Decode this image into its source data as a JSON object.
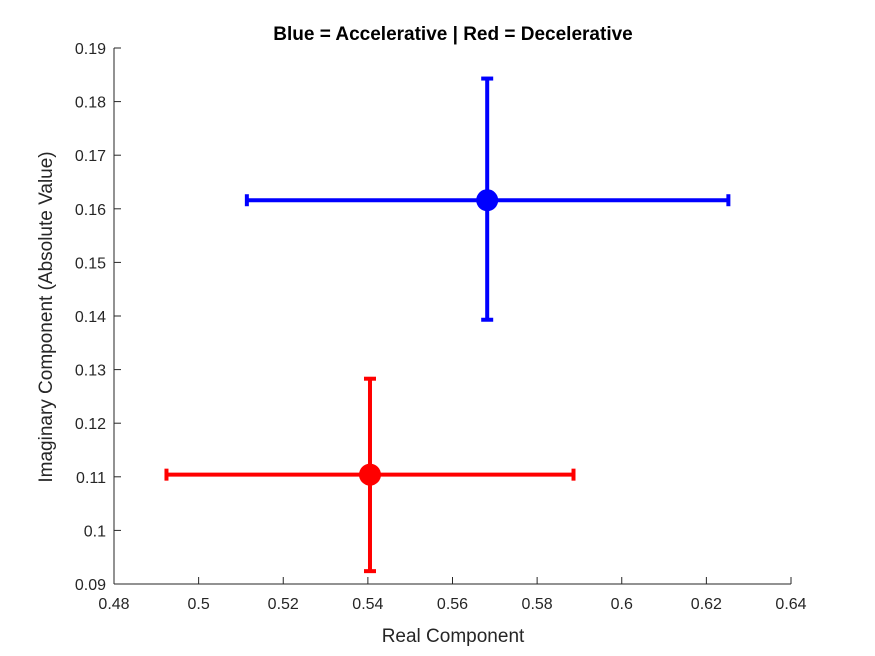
{
  "chart_data": {
    "type": "scatter",
    "title": "Blue = Accelerative | Red = Decelerative",
    "xlabel": "Real Component",
    "ylabel": "Imaginary Component (Absolute Value)",
    "xlim": [
      0.48,
      0.64
    ],
    "ylim": [
      0.09,
      0.19
    ],
    "xticks": [
      "0.48",
      "0.5",
      "0.52",
      "0.54",
      "0.56",
      "0.58",
      "0.6",
      "0.62",
      "0.64"
    ],
    "yticks": [
      "0.09",
      "0.1",
      "0.11",
      "0.12",
      "0.13",
      "0.14",
      "0.15",
      "0.16",
      "0.17",
      "0.18",
      "0.19"
    ],
    "grid": false,
    "points": [
      {
        "x": 0.5682,
        "y": 0.1616,
        "x_err": [
          0.5114,
          0.6252
        ],
        "y_err": [
          0.1393,
          0.1843
        ],
        "color": "#0000ff"
      },
      {
        "x": 0.5405,
        "y": 0.1104,
        "x_err": [
          0.4924,
          0.5886
        ],
        "y_err": [
          0.0924,
          0.1283
        ],
        "color": "#ff0000"
      }
    ]
  }
}
